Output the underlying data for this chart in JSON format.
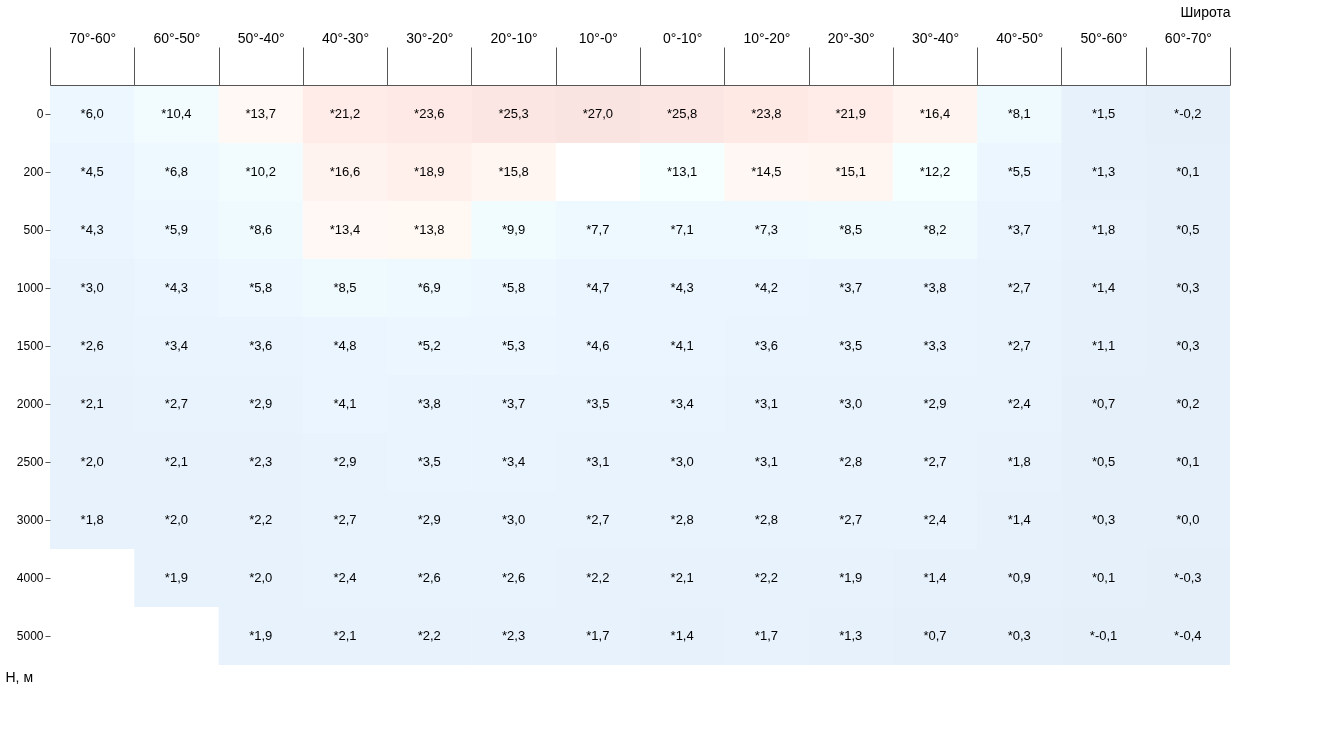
{
  "chart_data": {
    "type": "heatmap",
    "xlabel": "Широта",
    "ylabel": "Н, м",
    "categories": [
      "70°-60°",
      "60°-50°",
      "50°-40°",
      "40°-30°",
      "30°-20°",
      "20°-10°",
      "10°-0°",
      "0°-10°",
      "10°-20°",
      "20°-30°",
      "30°-40°",
      "40°-50°",
      "50°-60°",
      "60°-70°"
    ],
    "y_categories": [
      "0",
      "200",
      "500",
      "1000",
      "1500",
      "2000",
      "2500",
      "3000",
      "4000",
      "5000"
    ],
    "cells": [
      [
        6.0,
        10.4,
        13.7,
        21.2,
        23.6,
        25.3,
        27.0,
        25.8,
        23.8,
        21.9,
        16.4,
        8.1,
        1.5,
        -0.2
      ],
      [
        4.5,
        6.8,
        10.2,
        16.6,
        18.9,
        15.8,
        null,
        13.1,
        14.5,
        15.1,
        12.2,
        5.5,
        1.3,
        0.1
      ],
      [
        4.3,
        5.9,
        8.6,
        13.4,
        13.8,
        9.9,
        7.7,
        7.1,
        7.3,
        8.5,
        8.2,
        3.7,
        1.8,
        0.5
      ],
      [
        3.0,
        4.3,
        5.8,
        8.5,
        6.9,
        5.8,
        4.7,
        4.3,
        4.2,
        3.7,
        3.8,
        2.7,
        1.4,
        0.3
      ],
      [
        2.6,
        3.4,
        3.6,
        4.8,
        5.2,
        5.3,
        4.6,
        4.1,
        3.6,
        3.5,
        3.3,
        2.7,
        1.1,
        0.3
      ],
      [
        2.1,
        2.7,
        2.9,
        4.1,
        3.8,
        3.7,
        3.5,
        3.4,
        3.1,
        3.0,
        2.9,
        2.4,
        0.7,
        0.2
      ],
      [
        2.0,
        2.1,
        2.3,
        2.9,
        3.5,
        3.4,
        3.1,
        3.0,
        3.1,
        2.8,
        2.7,
        1.8,
        0.5,
        0.1
      ],
      [
        1.8,
        2.0,
        2.2,
        2.7,
        2.9,
        3.0,
        2.7,
        2.8,
        2.8,
        2.7,
        2.4,
        1.4,
        0.3,
        0.0
      ],
      [
        null,
        1.9,
        2.0,
        2.4,
        2.6,
        2.6,
        2.2,
        2.1,
        2.2,
        1.9,
        1.4,
        0.9,
        0.1,
        -0.3
      ],
      [
        null,
        null,
        1.9,
        2.1,
        2.2,
        2.3,
        1.7,
        1.4,
        1.7,
        1.3,
        0.7,
        0.3,
        -0.1,
        -0.4
      ]
    ],
    "cell_labels": [
      [
        "*6,0",
        "*10,4",
        "*13,7",
        "*21,2",
        "*23,6",
        "*25,3",
        "*27,0",
        "*25,8",
        "*23,8",
        "*21,9",
        "*16,4",
        "*8,1",
        "*1,5",
        "*-0,2"
      ],
      [
        "*4,5",
        "*6,8",
        "*10,2",
        "*16,6",
        "*18,9",
        "*15,8",
        null,
        "*13,1",
        "*14,5",
        "*15,1",
        "*12,2",
        "*5,5",
        "*1,3",
        "*0,1"
      ],
      [
        "*4,3",
        "*5,9",
        "*8,6",
        "*13,4",
        "*13,8",
        "*9,9",
        "*7,7",
        "*7,1",
        "*7,3",
        "*8,5",
        "*8,2",
        "*3,7",
        "*1,8",
        "*0,5"
      ],
      [
        "*3,0",
        "*4,3",
        "*5,8",
        "*8,5",
        "*6,9",
        "*5,8",
        "*4,7",
        "*4,3",
        "*4,2",
        "*3,7",
        "*3,8",
        "*2,7",
        "*1,4",
        "*0,3"
      ],
      [
        "*2,6",
        "*3,4",
        "*3,6",
        "*4,8",
        "*5,2",
        "*5,3",
        "*4,6",
        "*4,1",
        "*3,6",
        "*3,5",
        "*3,3",
        "*2,7",
        "*1,1",
        "*0,3"
      ],
      [
        "*2,1",
        "*2,7",
        "*2,9",
        "*4,1",
        "*3,8",
        "*3,7",
        "*3,5",
        "*3,4",
        "*3,1",
        "*3,0",
        "*2,9",
        "*2,4",
        "*0,7",
        "*0,2"
      ],
      [
        "*2,0",
        "*2,1",
        "*2,3",
        "*2,9",
        "*3,5",
        "*3,4",
        "*3,1",
        "*3,0",
        "*3,1",
        "*2,8",
        "*2,7",
        "*1,8",
        "*0,5",
        "*0,1"
      ],
      [
        "*1,8",
        "*2,0",
        "*2,2",
        "*2,7",
        "*2,9",
        "*3,0",
        "*2,7",
        "*2,8",
        "*2,8",
        "*2,7",
        "*2,4",
        "*1,4",
        "*0,3",
        "*0,0"
      ],
      [
        null,
        "*1,9",
        "*2,0",
        "*2,4",
        "*2,6",
        "*2,6",
        "*2,2",
        "*2,1",
        "*2,2",
        "*1,9",
        "*1,4",
        "*0,9",
        "*0,1",
        "*-0,3"
      ],
      [
        null,
        null,
        "*1,9",
        "*2,1",
        "*2,2",
        "*2,3",
        "*1,7",
        "*1,4",
        "*1,7",
        "*1,3",
        "*0,7",
        "*0,3",
        "*-0,1",
        "*-0,4"
      ]
    ]
  }
}
